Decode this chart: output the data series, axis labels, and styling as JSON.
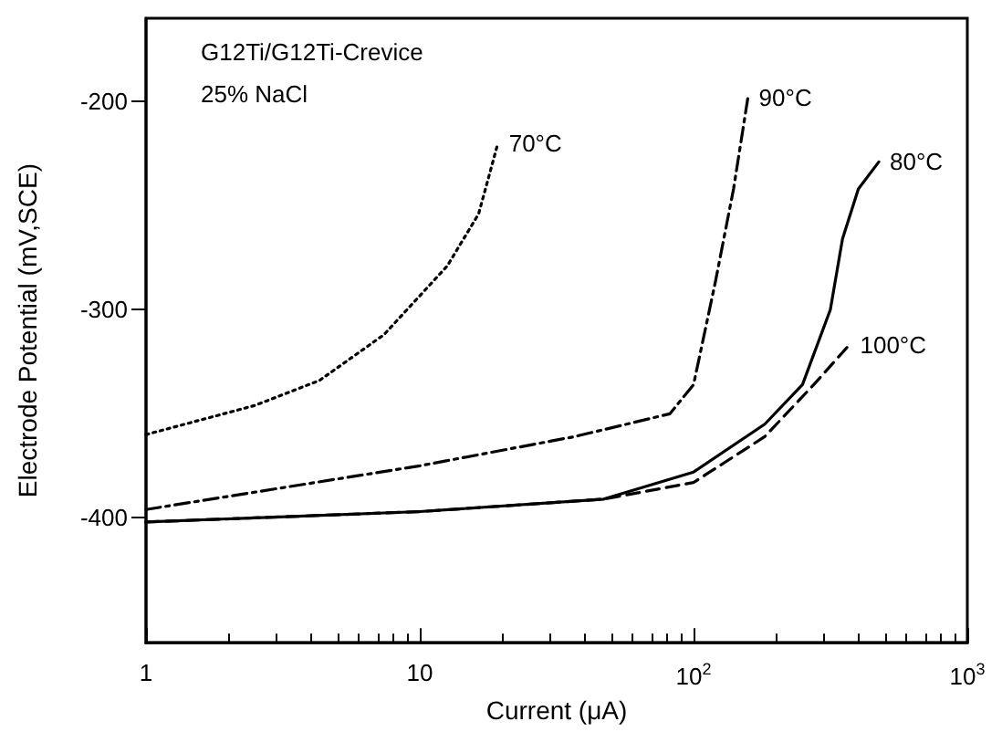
{
  "chart_data": {
    "type": "line",
    "xlabel": "Current (μA)",
    "ylabel": "Electrode Potential (mV,SCE)",
    "annotations": [
      "G12Ti/G12Ti-Crevice",
      "25% NaCl"
    ],
    "log": "x",
    "xlim": [
      1,
      1000
    ],
    "xticks": [
      1,
      10,
      {
        "value": 100,
        "label": "10$^{2}$"
      },
      {
        "value": 1000,
        "label": "10$^{3}$"
      }
    ],
    "ylim": [
      -460,
      -160
    ],
    "yticks": [
      -200,
      -300,
      -400
    ],
    "grid": false,
    "legend": false,
    "marker": "none",
    "series": [
      {
        "name": "70°C",
        "color": "#000000",
        "line_style": "dotted",
        "x": [
          1,
          2.5,
          4.3,
          7.4,
          12.6,
          16.4,
          19.3
        ],
        "values": [
          -360,
          -346,
          -334,
          -312,
          -279,
          -254,
          -220
        ]
      },
      {
        "name": "90°C",
        "color": "#000000",
        "line_style": "dashdot",
        "x": [
          1,
          10,
          36.7,
          82,
          100,
          120,
          140,
          158
        ],
        "values": [
          -396,
          -375,
          -361,
          -350,
          -336,
          -287,
          -242,
          -198
        ]
      },
      {
        "name": "80°C",
        "color": "#000000",
        "line_style": "solid",
        "x": [
          1,
          10,
          47,
          100,
          182,
          250,
          316,
          350,
          400,
          475
        ],
        "values": [
          -402,
          -397,
          -391,
          -378,
          -355,
          -336,
          -300,
          -266,
          -242,
          -229
        ]
      },
      {
        "name": "100°C",
        "color": "#000000",
        "line_style": "dashed",
        "x": [
          1,
          10,
          47,
          100,
          182,
          275,
          370
        ],
        "values": [
          -402,
          -397,
          -391,
          -383,
          -361,
          -336,
          -317
        ]
      }
    ]
  }
}
